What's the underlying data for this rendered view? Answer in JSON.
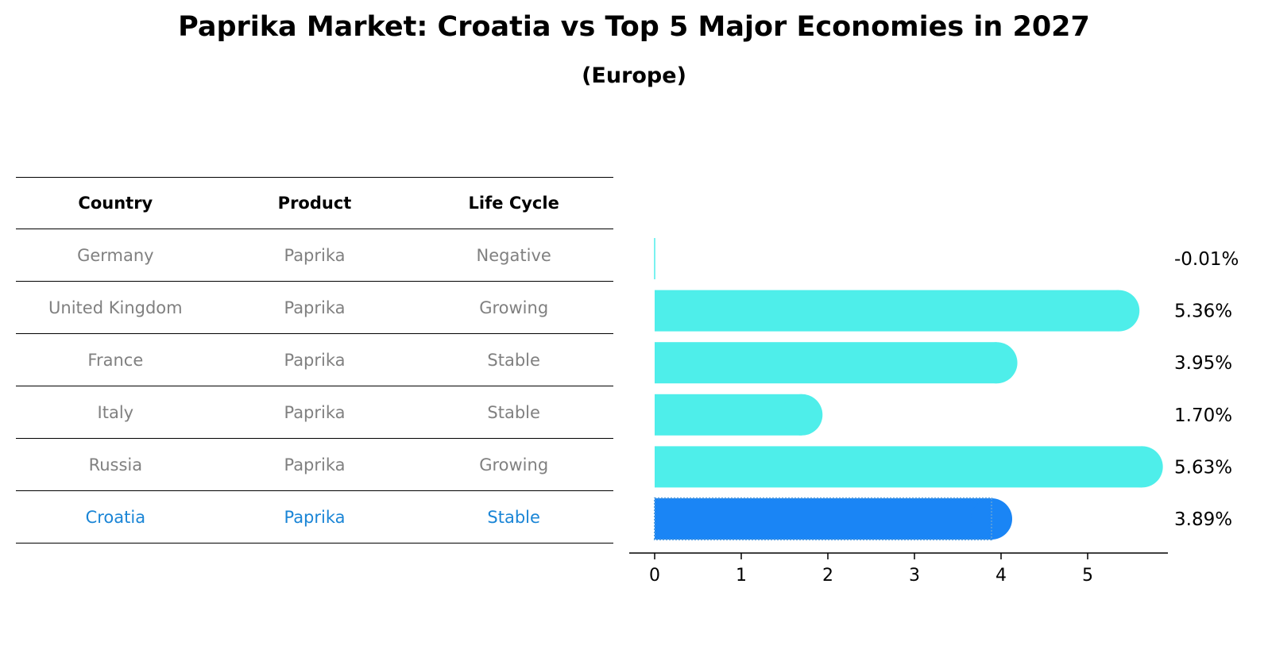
{
  "title": "Paprika Market: Croatia vs Top 5 Major Economies in 2027",
  "subtitle": "(Europe)",
  "table": {
    "headers": [
      "Country",
      "Product",
      "Life Cycle"
    ],
    "rows": [
      [
        "Germany",
        "Paprika",
        "Negative"
      ],
      [
        "United Kingdom",
        "Paprika",
        "Growing"
      ],
      [
        "France",
        "Paprika",
        "Stable"
      ],
      [
        "Italy",
        "Paprika",
        "Stable"
      ],
      [
        "Russia",
        "Paprika",
        "Growing"
      ],
      [
        "Croatia",
        "Paprika",
        "Stable"
      ]
    ],
    "highlight_row": 5
  },
  "chart_data": {
    "type": "bar",
    "orientation": "horizontal",
    "categories": [
      "Germany",
      "United Kingdom",
      "France",
      "Italy",
      "Russia",
      "Croatia"
    ],
    "values": [
      -0.01,
      5.36,
      3.95,
      1.7,
      5.63,
      3.89
    ],
    "value_labels": [
      "-0.01%",
      "5.36%",
      "3.95%",
      "1.70%",
      "5.63%",
      "3.89%"
    ],
    "xticks": [
      0,
      1,
      2,
      3,
      4,
      5
    ],
    "xlim": [
      -0.3,
      5.9
    ],
    "grid": false,
    "colors": {
      "default": "#4eeeea",
      "highlight": "#1a85f5",
      "highlight_border": "#4f9be0"
    },
    "highlight_index": 5
  }
}
